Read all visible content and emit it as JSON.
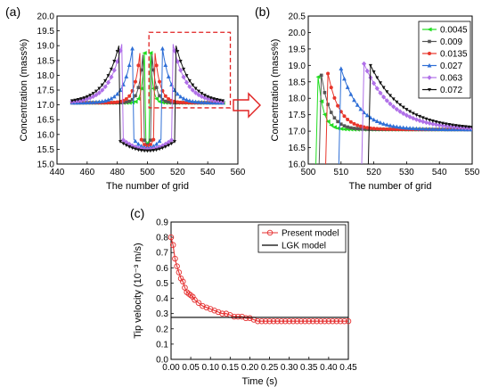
{
  "panel_labels": {
    "a": "(a)",
    "b": "(b)",
    "c": "(c)"
  },
  "colors": {
    "s0045": "#22dd22",
    "s009": "#555555",
    "s0135": "#e8352a",
    "s027": "#2f6fd6",
    "s063": "#b070e8",
    "s072": "#111111",
    "present": "#e53030",
    "lgk": "#000000",
    "dash_box": "#e02020",
    "arrow": "#e02020"
  },
  "chart_data": [
    {
      "id": "a",
      "type": "line",
      "xlabel": "The number of grid",
      "ylabel": "Concentration (mass%)",
      "xlim": [
        440,
        560
      ],
      "ylim": [
        15.0,
        20.0
      ],
      "xticks": [
        "440",
        "460",
        "480",
        "500",
        "520",
        "540",
        "560"
      ],
      "yticks": [
        "15.0",
        "15.5",
        "16.0",
        "16.5",
        "17.0",
        "17.5",
        "18.0",
        "18.5",
        "19.0",
        "19.5",
        "20.0"
      ],
      "annotation": "dashed box around x 500–555, y 16.9–19.4",
      "series": [
        {
          "key": "s0045",
          "peak_left": 498,
          "peak_right": 502,
          "peak": 18.75,
          "tail": 17.07,
          "decay": 1.6
        },
        {
          "key": "s009",
          "peak_left": 497,
          "peak_right": 503,
          "peak": 18.7,
          "tail": 17.07,
          "decay": 2.6
        },
        {
          "key": "s0135",
          "peak_left": 495,
          "peak_right": 505,
          "peak": 18.75,
          "tail": 17.07,
          "decay": 3.5
        },
        {
          "key": "s027",
          "peak_left": 490,
          "peak_right": 510,
          "peak": 18.9,
          "tail": 17.07,
          "decay": 5.5
        },
        {
          "key": "s063",
          "peak_left": 483,
          "peak_right": 517,
          "peak": 19.05,
          "tail": 17.07,
          "decay": 8.5
        },
        {
          "key": "s072",
          "peak_left": 481,
          "peak_right": 519,
          "peak": 19.0,
          "tail": 17.07,
          "decay": 9.5
        }
      ]
    },
    {
      "id": "b",
      "type": "line",
      "xlabel": "The number of grid",
      "ylabel": "Concentration (mass%)",
      "xlim": [
        500,
        550
      ],
      "ylim": [
        16.0,
        20.5
      ],
      "xticks": [
        "500",
        "510",
        "520",
        "530",
        "540",
        "550"
      ],
      "yticks": [
        "16.0",
        "16.5",
        "17.0",
        "17.5",
        "18.0",
        "18.5",
        "19.0",
        "19.5",
        "20.0",
        "20.5"
      ],
      "legend_position": "top-right",
      "series": [
        {
          "key": "s0045",
          "name": "0.0045",
          "peak_x": 503,
          "peak": 18.65,
          "tail": 17.05,
          "decay": 1.6
        },
        {
          "key": "s009",
          "name": "0.009",
          "peak_x": 504,
          "peak": 18.7,
          "tail": 17.05,
          "decay": 2.6
        },
        {
          "key": "s0135",
          "name": "0.0135",
          "peak_x": 506,
          "peak": 18.75,
          "tail": 17.05,
          "decay": 3.5
        },
        {
          "key": "s027",
          "name": "0.027",
          "peak_x": 510,
          "peak": 18.9,
          "tail": 17.05,
          "decay": 5.5
        },
        {
          "key": "s063",
          "name": "0.063",
          "peak_x": 517,
          "peak": 19.05,
          "tail": 17.05,
          "decay": 8.5
        },
        {
          "key": "s072",
          "name": "0.072",
          "peak_x": 519,
          "peak": 19.0,
          "tail": 17.05,
          "decay": 9.5
        }
      ]
    },
    {
      "id": "c",
      "type": "line",
      "xlabel": "Time (s)",
      "ylabel": "Tip velocity (10⁻³ m/s)",
      "xlim": [
        0,
        0.45
      ],
      "ylim": [
        0.0,
        0.9
      ],
      "xticks": [
        "0.00",
        "0.05",
        "0.10",
        "0.15",
        "0.20",
        "0.25",
        "0.30",
        "0.35",
        "0.40",
        "0.45"
      ],
      "yticks": [
        "0.0",
        "0.1",
        "0.2",
        "0.3",
        "0.4",
        "0.5",
        "0.6",
        "0.7",
        "0.8",
        "0.9"
      ],
      "legend_position": "top-right",
      "series": [
        {
          "key": "present",
          "name": "Present model",
          "x": [
            0.0,
            0.005,
            0.01,
            0.015,
            0.02,
            0.025,
            0.03,
            0.035,
            0.04,
            0.045,
            0.05,
            0.055,
            0.06,
            0.07,
            0.08,
            0.09,
            0.1,
            0.11,
            0.12,
            0.13,
            0.14,
            0.15,
            0.16,
            0.17,
            0.18,
            0.19,
            0.2,
            0.21,
            0.22,
            0.23,
            0.24,
            0.25,
            0.26,
            0.27,
            0.28,
            0.29,
            0.3,
            0.31,
            0.32,
            0.33,
            0.34,
            0.35,
            0.36,
            0.37,
            0.38,
            0.39,
            0.4,
            0.41,
            0.42,
            0.43,
            0.44,
            0.45
          ],
          "y": [
            0.8,
            0.75,
            0.66,
            0.61,
            0.57,
            0.53,
            0.51,
            0.47,
            0.44,
            0.43,
            0.42,
            0.41,
            0.39,
            0.37,
            0.35,
            0.34,
            0.33,
            0.32,
            0.31,
            0.3,
            0.3,
            0.29,
            0.28,
            0.28,
            0.28,
            0.27,
            0.27,
            0.26,
            0.25,
            0.25,
            0.25,
            0.25,
            0.25,
            0.25,
            0.25,
            0.25,
            0.25,
            0.25,
            0.25,
            0.25,
            0.25,
            0.25,
            0.25,
            0.25,
            0.25,
            0.25,
            0.25,
            0.25,
            0.25,
            0.25,
            0.25,
            0.25
          ]
        },
        {
          "key": "lgk",
          "name": "LGK model",
          "x": [
            0.0,
            0.45
          ],
          "y": [
            0.275,
            0.275
          ]
        }
      ]
    }
  ]
}
